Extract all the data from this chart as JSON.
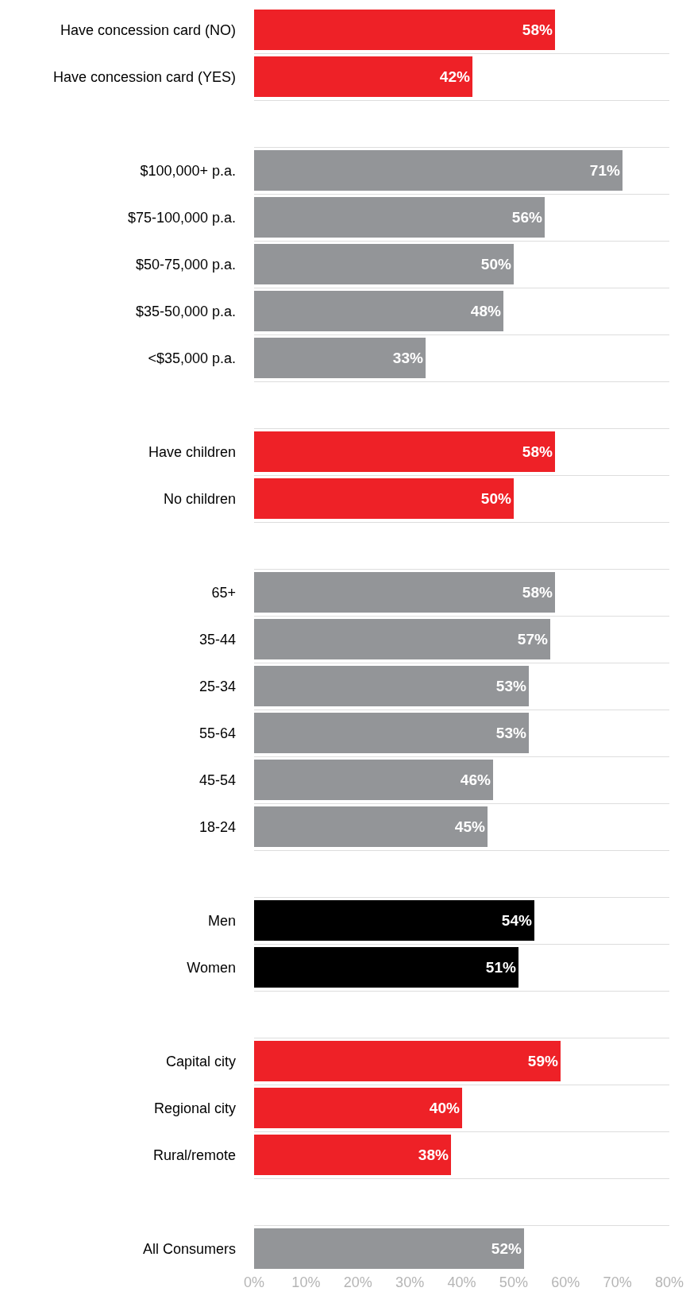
{
  "chart_data": {
    "type": "bar",
    "orientation": "horizontal",
    "categories": [
      "Have concession card (NO)",
      "Have concession card (YES)",
      null,
      "$100,000+ p.a.",
      "$75-100,000 p.a.",
      "$50-75,000 p.a.",
      "$35-50,000 p.a.",
      "<$35,000 p.a.",
      null,
      "Have children",
      "No children",
      null,
      "65+",
      "35-44",
      "25-34",
      "55-64",
      "45-54",
      "18-24",
      null,
      "Men",
      "Women",
      null,
      "Capital city",
      "Regional city",
      "Rural/remote",
      null,
      "All Consumers"
    ],
    "values": [
      58,
      42,
      null,
      71,
      56,
      50,
      48,
      33,
      null,
      58,
      50,
      null,
      58,
      57,
      53,
      53,
      46,
      45,
      null,
      54,
      51,
      null,
      59,
      40,
      38,
      null,
      52
    ],
    "value_labels": [
      "58%",
      "42%",
      null,
      "71%",
      "56%",
      "50%",
      "48%",
      "33%",
      null,
      "58%",
      "50%",
      null,
      "58%",
      "57%",
      "53%",
      "53%",
      "46%",
      "45%",
      null,
      "54%",
      "51%",
      null,
      "59%",
      "40%",
      "38%",
      null,
      "52%"
    ],
    "colors": [
      "#ee2127",
      "#ee2127",
      null,
      "#939598",
      "#939598",
      "#939598",
      "#939598",
      "#939598",
      null,
      "#ee2127",
      "#ee2127",
      null,
      "#939598",
      "#939598",
      "#939598",
      "#939598",
      "#939598",
      "#939598",
      null,
      "#000000",
      "#000000",
      null,
      "#ee2127",
      "#ee2127",
      "#ee2127",
      null,
      "#939598"
    ],
    "xlim": [
      0,
      80
    ],
    "xticks": [
      {
        "value": 0,
        "label": "0%"
      },
      {
        "value": 10,
        "label": "10%"
      },
      {
        "value": 20,
        "label": "20%"
      },
      {
        "value": 30,
        "label": "30%"
      },
      {
        "value": 40,
        "label": "40%"
      },
      {
        "value": 50,
        "label": "50%"
      },
      {
        "value": 60,
        "label": "60%"
      },
      {
        "value": 70,
        "label": "70%"
      },
      {
        "value": 80,
        "label": "80%"
      }
    ],
    "grid": "y"
  }
}
